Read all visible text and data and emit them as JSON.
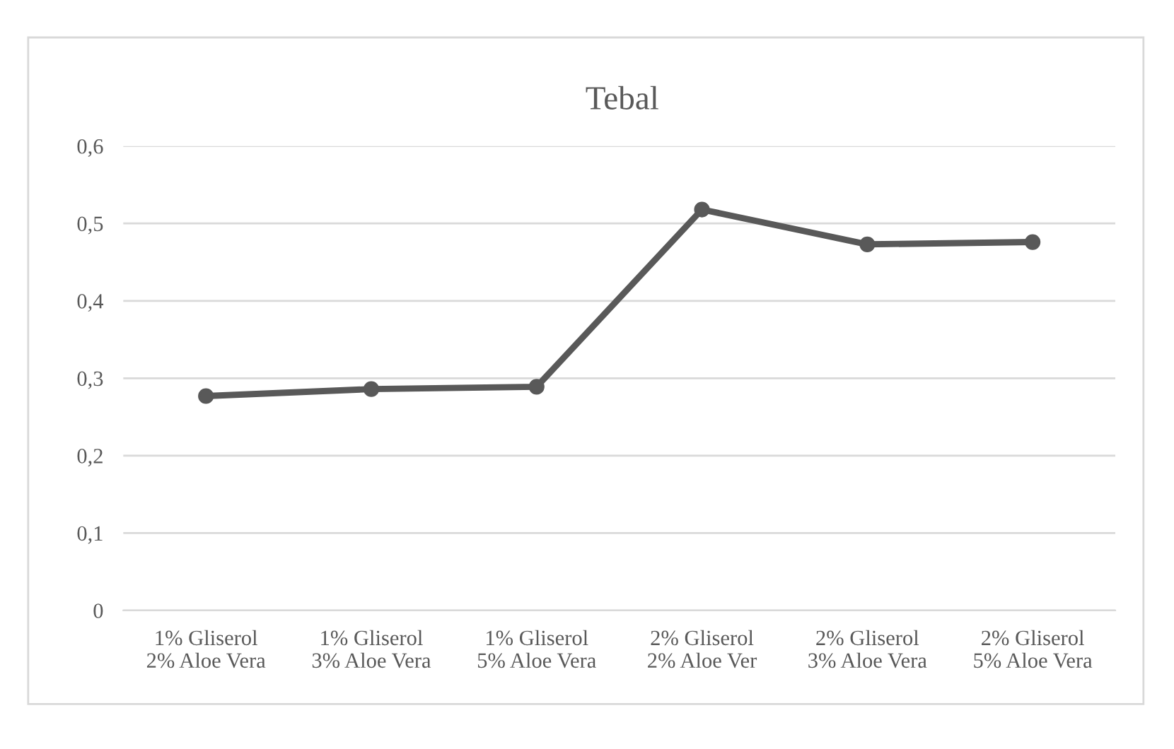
{
  "chart_data": {
    "type": "line",
    "title": "Tebal",
    "categories": [
      "1% Gliserol\n2% Aloe Vera",
      "1% Gliserol\n3% Aloe Vera",
      "1% Gliserol\n5% Aloe Vera",
      "2% Gliserol\n2% Aloe Ver",
      "2% Gliserol\n3% Aloe Vera",
      "2% Gliserol\n5% Aloe Vera"
    ],
    "series": [
      {
        "color": "#595959",
        "values": [
          0.277,
          0.286,
          0.289,
          0.518,
          0.473,
          0.476
        ]
      }
    ],
    "ylim": [
      0,
      0.6
    ],
    "yticks": [
      {
        "value": 0,
        "label": "0"
      },
      {
        "value": 0.1,
        "label": "0,1"
      },
      {
        "value": 0.2,
        "label": "0,2"
      },
      {
        "value": 0.3,
        "label": "0,3"
      },
      {
        "value": 0.4,
        "label": "0,4"
      },
      {
        "value": 0.5,
        "label": "0,5"
      },
      {
        "value": 0.6,
        "label": "0,6"
      }
    ],
    "grid": "y",
    "legend": false,
    "marker": "circle",
    "line_style": "solid"
  }
}
